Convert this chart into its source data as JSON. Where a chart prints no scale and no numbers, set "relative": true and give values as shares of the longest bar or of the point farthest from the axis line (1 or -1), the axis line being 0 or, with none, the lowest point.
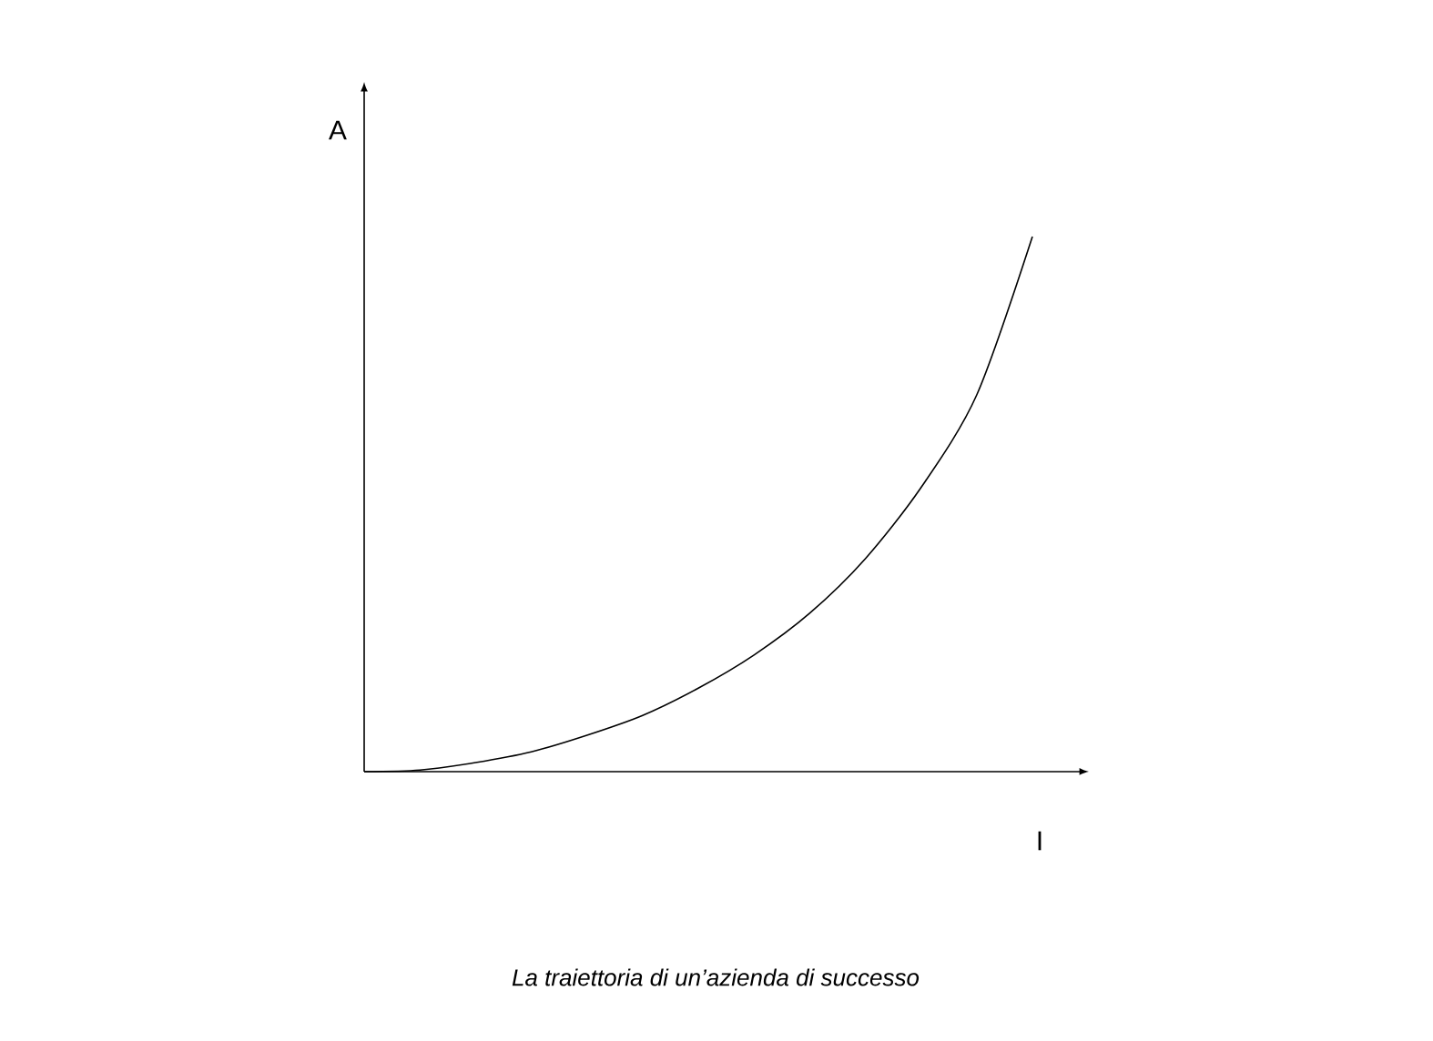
{
  "chart_data": {
    "type": "line",
    "relative": true,
    "xlabel": "I",
    "ylabel": "A",
    "color": "#000000",
    "categories": [
      null,
      null,
      null,
      null,
      null,
      null,
      null,
      null,
      null,
      null,
      null,
      null,
      null
    ],
    "values": [
      0,
      0.003,
      0.017,
      0.037,
      0.068,
      0.105,
      0.156,
      0.218,
      0.296,
      0.398,
      0.531,
      0.704,
      1
    ],
    "annotations": [
      "La traiettoria di un’azienda di successo"
    ]
  }
}
